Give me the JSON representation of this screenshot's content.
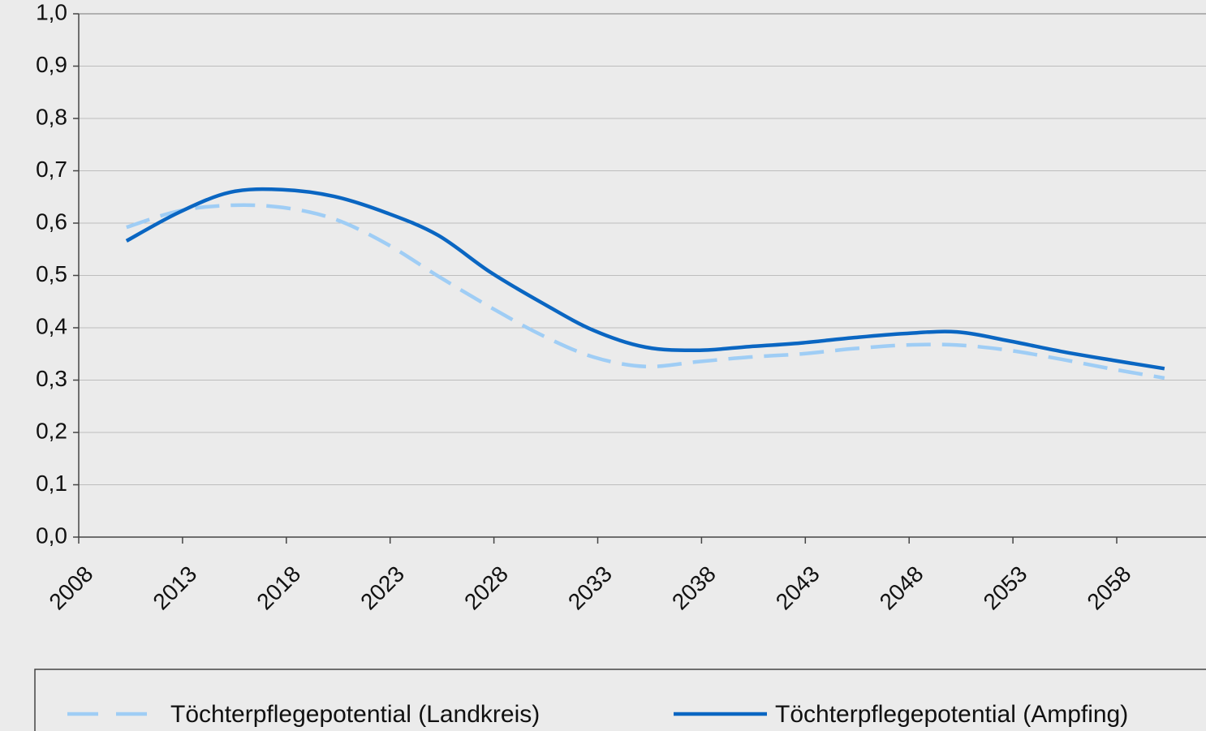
{
  "chart_data": {
    "type": "line",
    "x": [
      2010.3,
      2012.8,
      2015.3,
      2017.8,
      2020.3,
      2022.8,
      2025.3,
      2027.8,
      2030.3,
      2032.8,
      2035.3,
      2037.8,
      2040.3,
      2042.8,
      2045.3,
      2047.8,
      2050.3,
      2052.8,
      2055.3,
      2057.8,
      2060.3
    ],
    "series": [
      {
        "name": "Töchterpflegepotential (Landkreis)",
        "color": "#9fcdf5",
        "dash": true,
        "values": [
          0.592,
          0.623,
          0.634,
          0.63,
          0.608,
          0.561,
          0.499,
          0.44,
          0.386,
          0.344,
          0.326,
          0.335,
          0.344,
          0.35,
          0.36,
          0.367,
          0.367,
          0.357,
          0.34,
          0.321,
          0.304
        ]
      },
      {
        "name": "Töchterpflegepotential (Ampfing)",
        "color": "#0a66c2",
        "dash": false,
        "values": [
          0.566,
          0.62,
          0.659,
          0.664,
          0.651,
          0.62,
          0.577,
          0.507,
          0.448,
          0.395,
          0.363,
          0.357,
          0.364,
          0.371,
          0.381,
          0.389,
          0.392,
          0.375,
          0.355,
          0.338,
          0.322
        ]
      }
    ],
    "xlim": [
      2008,
      2062.3
    ],
    "xticks": [
      2008,
      2013,
      2018,
      2023,
      2028,
      2033,
      2038,
      2043,
      2048,
      2053,
      2058
    ],
    "ylim": [
      0,
      1
    ],
    "yticks": [
      {
        "value": 0,
        "label": "0,0"
      },
      {
        "value": 0.1,
        "label": "0,1"
      },
      {
        "value": 0.2,
        "label": "0,2"
      },
      {
        "value": 0.3,
        "label": "0,3"
      },
      {
        "value": 0.4,
        "label": "0,4"
      },
      {
        "value": 0.5,
        "label": "0,5"
      },
      {
        "value": 0.6,
        "label": "0,6"
      },
      {
        "value": 0.7,
        "label": "0,7"
      },
      {
        "value": 0.8,
        "label": "0,8"
      },
      {
        "value": 0.9,
        "label": "0,9"
      },
      {
        "value": 1,
        "label": "1,0"
      }
    ],
    "grid": true,
    "legend": "bottom"
  }
}
